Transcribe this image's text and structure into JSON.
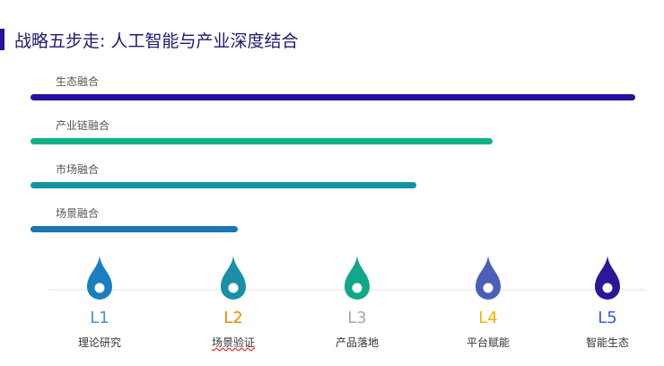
{
  "header": {
    "title": "战略五步走: 人工智能与产业深度结合"
  },
  "bars": [
    {
      "label": "生态融合"
    },
    {
      "label": "产业链融合"
    },
    {
      "label": "市场融合"
    },
    {
      "label": "场景融合"
    }
  ],
  "levels": [
    {
      "code": "L1",
      "label": "理论研究"
    },
    {
      "code": "L2",
      "label": "场景验证"
    },
    {
      "code": "L3",
      "label": "产品落地"
    },
    {
      "code": "L4",
      "label": "平台赋能"
    },
    {
      "code": "L5",
      "label": "智能生态"
    }
  ]
}
